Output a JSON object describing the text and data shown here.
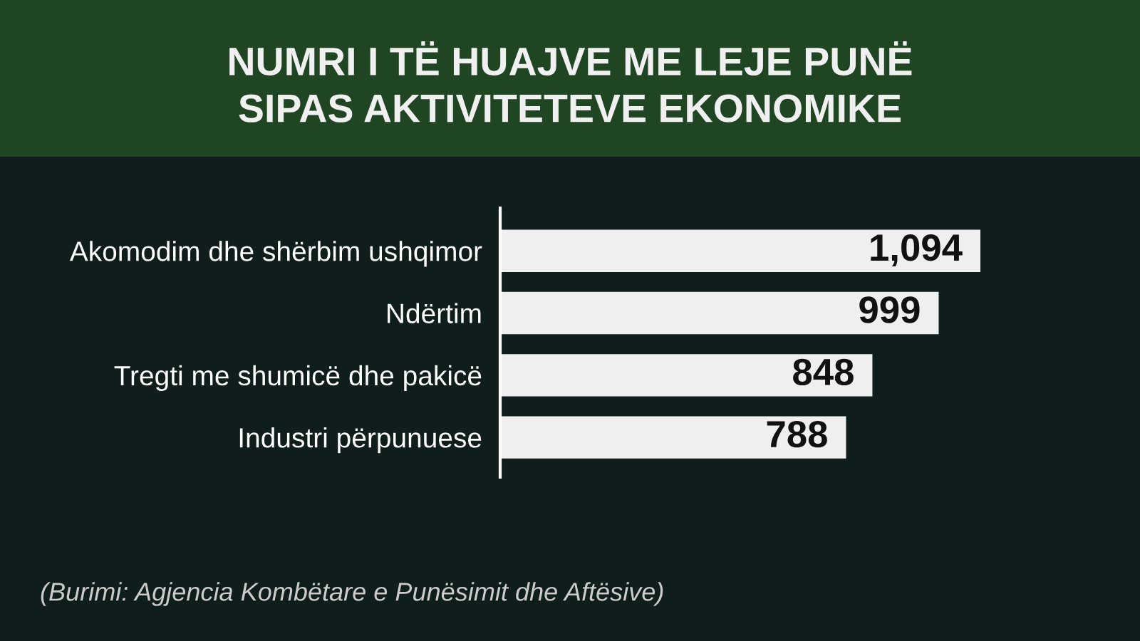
{
  "chart_data": {
    "type": "bar",
    "orientation": "horizontal",
    "title": "NUMRI I TË HUAJVE ME LEJE PUNË\nSIPAS AKTIVITETEVE EKONOMIKE",
    "categories": [
      "Akomodim dhe shërbim ushqimor",
      "Ndërtim",
      "Tregti me shumicë dhe pakicë",
      "Industri përpunuese"
    ],
    "values": [
      1094,
      999,
      848,
      788
    ],
    "value_labels": [
      "1,094",
      "999",
      "848",
      "788"
    ],
    "color": "#efefef",
    "annotations": [
      "(Burimi: Agjencia Kombëtare e Punësimit dhe Aftësive)"
    ]
  }
}
